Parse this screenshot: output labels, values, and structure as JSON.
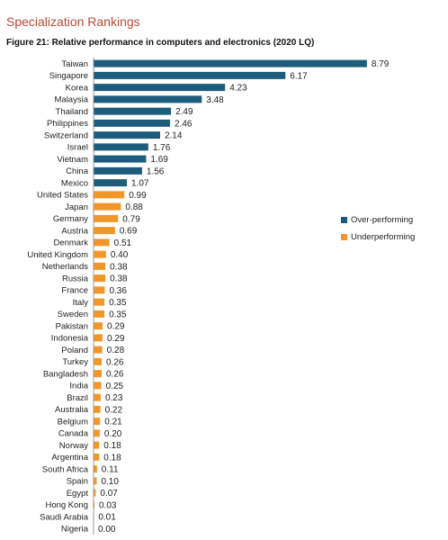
{
  "header": {
    "section_title": "Specialization Rankings",
    "figure_title": "Figure 21: Relative performance in computers and electronics (2020 LQ)"
  },
  "legend": {
    "over": {
      "label": "Over-performing",
      "color": "#1d5c7a"
    },
    "under": {
      "label": "Underperforming",
      "color": "#f3962a"
    }
  },
  "chart_data": {
    "type": "bar",
    "orientation": "horizontal",
    "title": "Figure 21: Relative performance in computers and electronics (2020 LQ)",
    "xlim": [
      0,
      9.2
    ],
    "threshold": 1.0,
    "categories": [
      "Taiwan",
      "Singapore",
      "Korea",
      "Malaysia",
      "Thailand",
      "Philippines",
      "Switzerland",
      "Israel",
      "Vietnam",
      "China",
      "Mexico",
      "United States",
      "Japan",
      "Germany",
      "Austria",
      "Denmark",
      "United Kingdom",
      "Netherlands",
      "Russia",
      "France",
      "Italy",
      "Sweden",
      "Pakistan",
      "Indonesia",
      "Poland",
      "Turkey",
      "Bangladesh",
      "India",
      "Brazil",
      "Australia",
      "Belgium",
      "Canada",
      "Norway",
      "Argentina",
      "South Africa",
      "Spain",
      "Egypt",
      "Hong Kong",
      "Saudi Arabia",
      "Nigeria"
    ],
    "values": [
      8.79,
      6.17,
      4.23,
      3.48,
      2.49,
      2.46,
      2.14,
      1.76,
      1.69,
      1.56,
      1.07,
      0.99,
      0.88,
      0.79,
      0.69,
      0.51,
      0.4,
      0.38,
      0.38,
      0.36,
      0.35,
      0.35,
      0.29,
      0.29,
      0.28,
      0.26,
      0.26,
      0.25,
      0.23,
      0.22,
      0.21,
      0.2,
      0.18,
      0.18,
      0.11,
      0.1,
      0.07,
      0.03,
      0.01,
      0.0
    ],
    "value_labels": [
      "8.79",
      "6.17",
      "4.23",
      "3.48",
      "2.49",
      "2.46",
      "2.14",
      "1.76",
      "1.69",
      "1.56",
      "1.07",
      "0.99",
      "0.88",
      "0.79",
      "0.69",
      "0.51",
      "0.40",
      "0.38",
      "0.38",
      "0.36",
      "0.35",
      "0.35",
      "0.29",
      "0.29",
      "0.28",
      "0.26",
      "0.26",
      "0.25",
      "0.23",
      "0.22",
      "0.21",
      "0.20",
      "0.18",
      "0.18",
      "0.11",
      "0.10",
      "0.07",
      "0.03",
      "0.01",
      "0.00"
    ],
    "legend": [
      "Over-performing",
      "Underperforming"
    ],
    "legend_position": "right"
  }
}
